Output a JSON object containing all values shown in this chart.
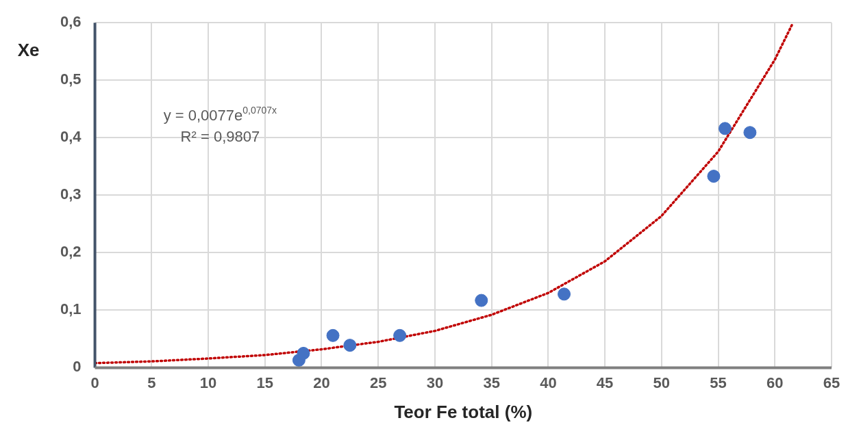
{
  "chart_data": {
    "type": "scatter",
    "xlabel": "Teor Fe total (%)",
    "ylabel": "Xe",
    "series": [
      {
        "type": "scatter",
        "color": "#4472c4",
        "marker": "circle",
        "x": [
          18.0,
          18.4,
          21.0,
          22.5,
          26.9,
          34.1,
          41.4,
          54.6,
          55.6,
          57.8
        ],
        "values": [
          0.013,
          0.025,
          0.056,
          0.039,
          0.056,
          0.117,
          0.128,
          0.333,
          0.416,
          0.409
        ]
      },
      {
        "type": "line",
        "color": "#c00000",
        "line_style": "dotted",
        "marker": "none",
        "x": [
          0,
          5,
          10,
          15,
          20,
          25,
          30,
          35,
          40,
          45,
          50,
          55,
          60,
          61.6
        ],
        "values": [
          0.008,
          0.011,
          0.016,
          0.022,
          0.032,
          0.045,
          0.064,
          0.092,
          0.13,
          0.185,
          0.264,
          0.376,
          0.536,
          0.6
        ]
      }
    ],
    "xlim": [
      0,
      65
    ],
    "xticks": [
      0,
      5,
      10,
      15,
      20,
      25,
      30,
      35,
      40,
      45,
      50,
      55,
      60,
      65
    ],
    "ylim": [
      0,
      0.6
    ],
    "yticks": [
      0,
      {
        "value": 0.1,
        "label": "0,1"
      },
      {
        "value": 0.2,
        "label": "0,2"
      },
      {
        "value": 0.3,
        "label": "0,3"
      },
      {
        "value": 0.4,
        "label": "0,4"
      },
      {
        "value": 0.5,
        "label": "0,5"
      },
      {
        "value": 0.6,
        "label": "0,6"
      }
    ],
    "grid": true,
    "legend": false,
    "annotations": [
      "y = 0,0077e$^{0,0707x}$",
      "R² = 0,9807"
    ]
  }
}
